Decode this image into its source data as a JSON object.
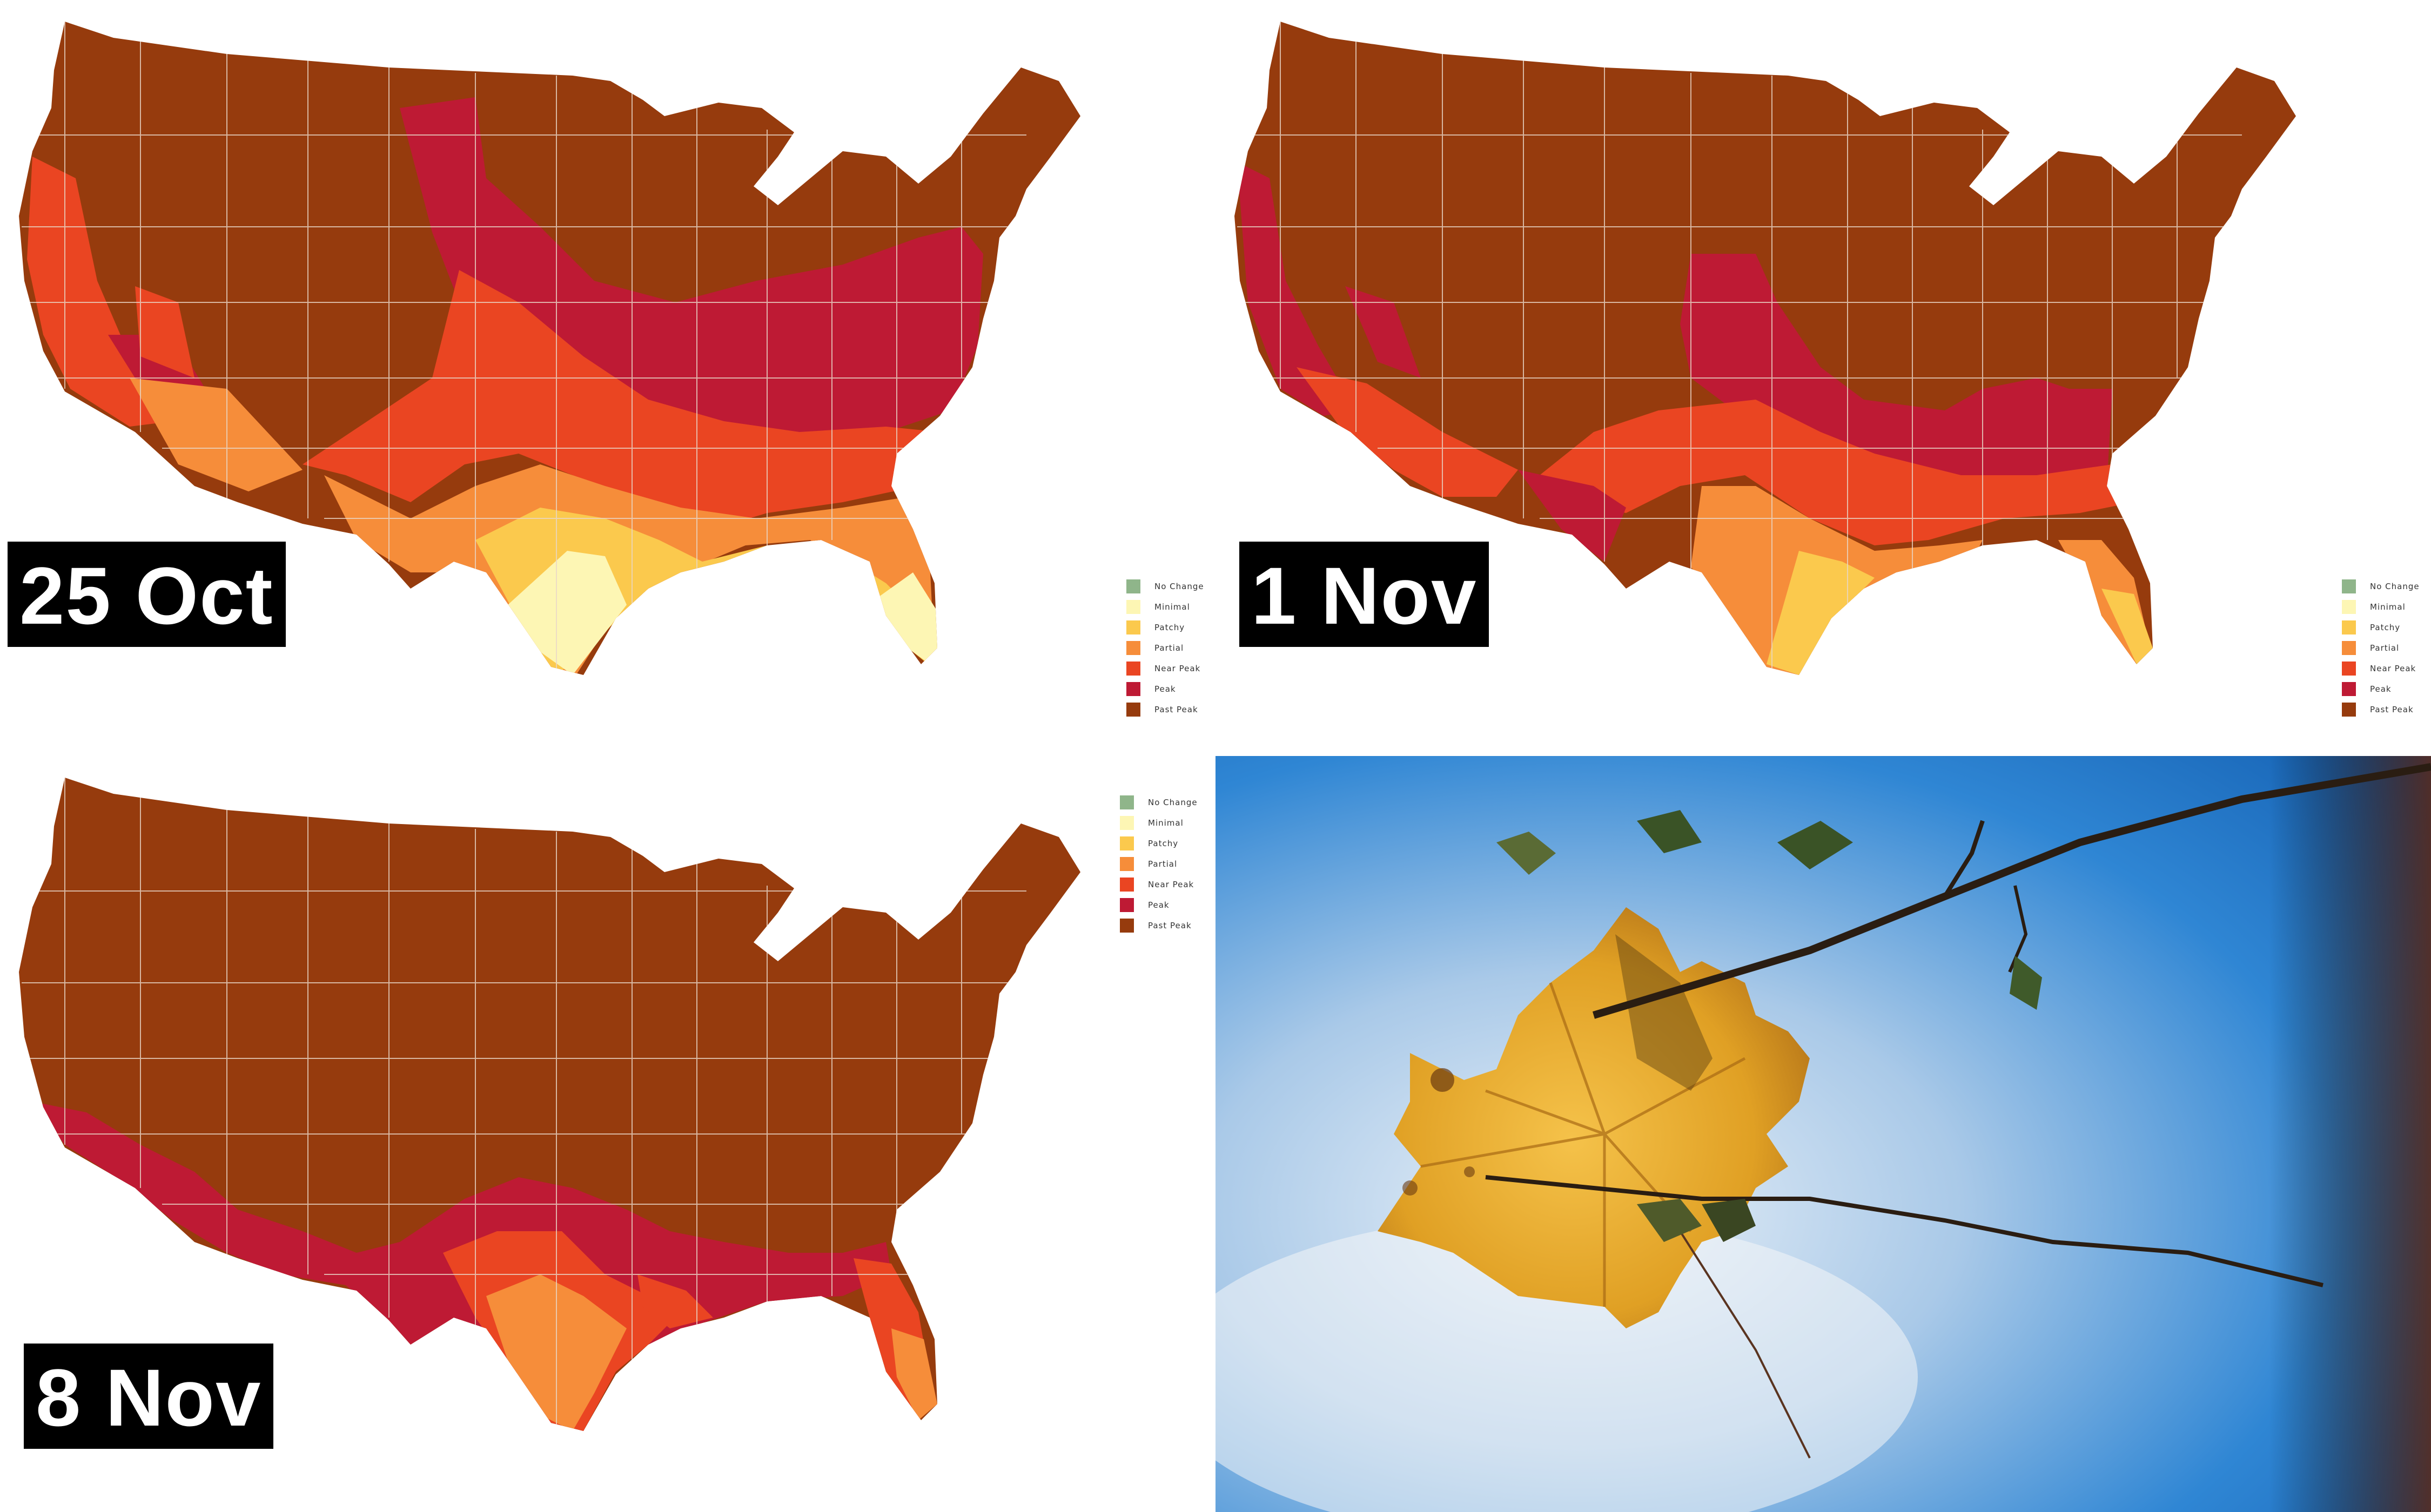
{
  "panels": [
    {
      "date_label": "25 Oct"
    },
    {
      "date_label": "1 Nov"
    },
    {
      "date_label": "8 Nov"
    }
  ],
  "legend": {
    "items": [
      {
        "label": "No Change",
        "color": "#8fb58a"
      },
      {
        "label": "Minimal",
        "color": "#fdf6b4"
      },
      {
        "label": "Patchy",
        "color": "#fbc94d"
      },
      {
        "label": "Partial",
        "color": "#f68d3a"
      },
      {
        "label": "Near Peak",
        "color": "#ea4522"
      },
      {
        "label": "Peak",
        "color": "#be1a34"
      },
      {
        "label": "Past Peak",
        "color": "#963b0d"
      }
    ]
  },
  "photo": {
    "description_icon": "autumn-leaf-photo",
    "sky_color": "#2e86d6",
    "leaf_color": "#e2a628"
  }
}
